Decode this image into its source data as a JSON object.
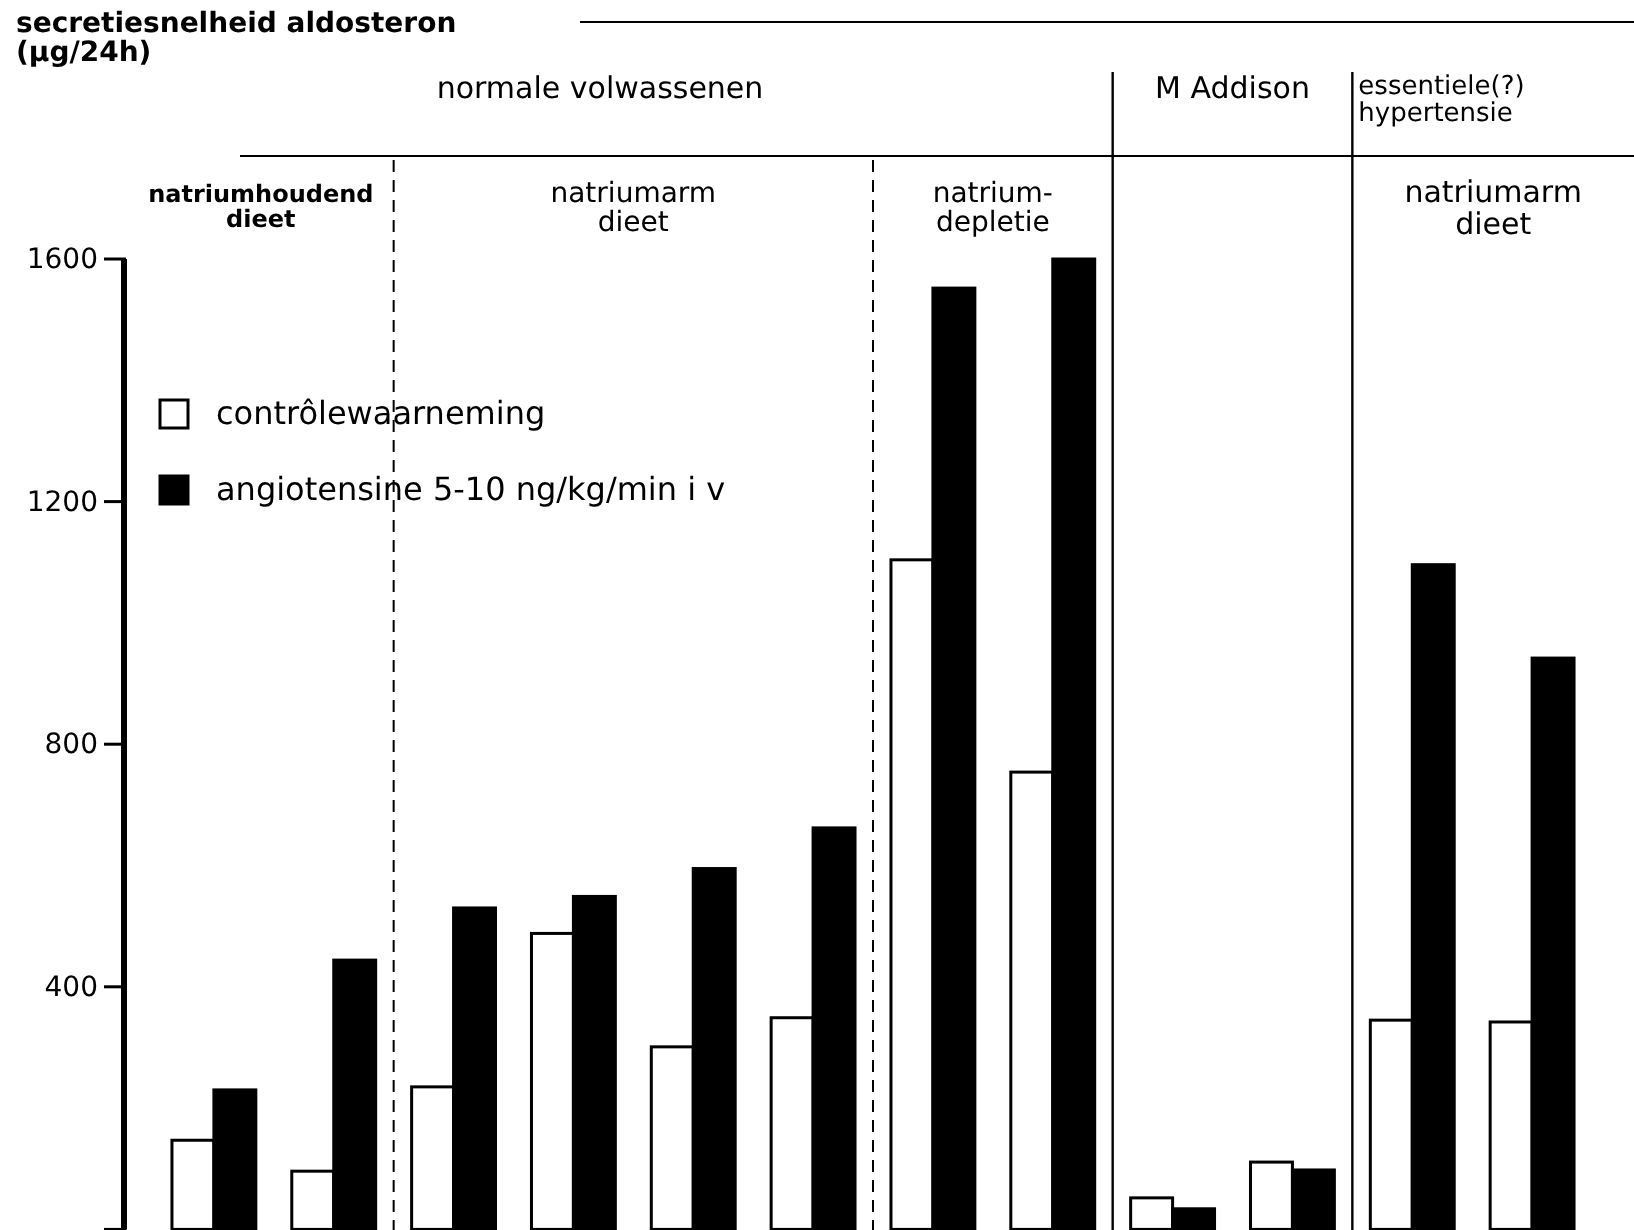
{
  "chart_data": {
    "type": "bar",
    "categories": [
      null,
      null,
      null,
      null,
      null,
      null,
      null,
      null,
      null,
      null,
      null,
      null
    ],
    "series": [
      {
        "name": "contrôlewaarneming",
        "color": "#ffffff",
        "values": [
          147,
          96,
          235,
          488,
          301,
          349,
          1104,
          754,
          52,
          111,
          345,
          342
        ]
      },
      {
        "name": "angiotensine 5-10 ng/kg/min i v",
        "color": "#000000",
        "values": [
          230,
          444,
          530,
          549,
          595,
          662,
          1552,
          1600,
          34,
          98,
          1096,
          942
        ]
      }
    ],
    "ylim": [
      0,
      1600
    ],
    "yticks": [
      {
        "value": 0,
        "label": null
      },
      400,
      800,
      1200,
      1600
    ],
    "legend": "top left",
    "annotations": [
      "secretiesnelheid aldosteron\n(µg/24h)",
      "normale volwassenen",
      "M Addison",
      "essentiele(?)\nhypertensie",
      "natriumhoudend\ndieet",
      "natriumarm\ndieet",
      "natrium-\ndepletie",
      "natriumarm\ndieet"
    ]
  }
}
